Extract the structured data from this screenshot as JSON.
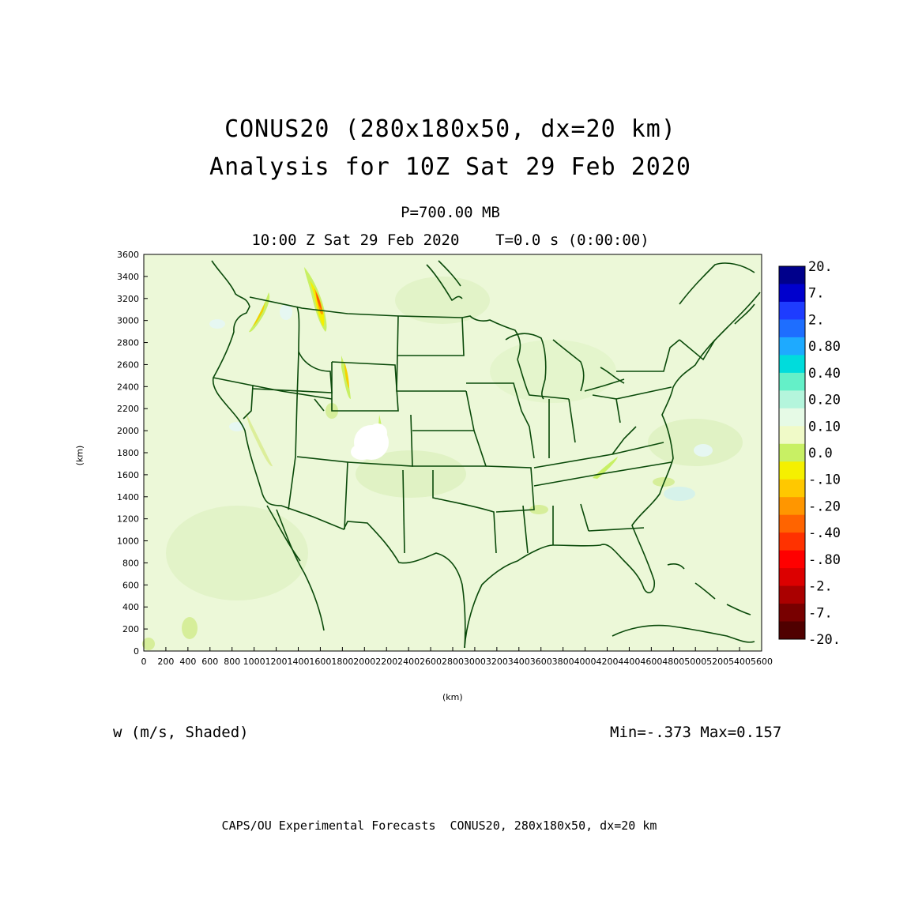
{
  "title": {
    "line1": "CONUS20 (280x180x50, dx=20 km)",
    "line2": "Analysis for 10Z Sat 29 Feb 2020"
  },
  "level_label": "P=700.00 MB",
  "time_label": "10:00 Z Sat 29 Feb 2020    T=0.0 s (0:00:00)",
  "variable_label": "w (m/s, Shaded)",
  "minmax_label": "Min=-.373 Max=0.157",
  "footer": "CAPS/OU Experimental Forecasts  CONUS20, 280x180x50, dx=20 km",
  "axes": {
    "xlabel": "(km)",
    "ylabel": "(km)",
    "x_range": [
      0,
      5600
    ],
    "y_range": [
      0,
      3600
    ],
    "x_ticks": [
      "0",
      "200",
      "400",
      "600",
      "800",
      "1000",
      "1200",
      "1400",
      "1600",
      "1800",
      "2000",
      "2200",
      "2400",
      "2600",
      "2800",
      "3000",
      "3200",
      "3400",
      "3600",
      "3800",
      "4000",
      "4200",
      "4400",
      "4600",
      "4800",
      "5000",
      "5200",
      "5400",
      "5600"
    ],
    "y_ticks": [
      "0",
      "200",
      "400",
      "600",
      "800",
      "1000",
      "1200",
      "1400",
      "1600",
      "1800",
      "2000",
      "2200",
      "2400",
      "2600",
      "2800",
      "3000",
      "3200",
      "3400",
      "3600"
    ]
  },
  "colorbar": {
    "labels": [
      "20.",
      "7.",
      "2.",
      "0.80",
      "0.40",
      "0.20",
      "0.10",
      "0.0",
      "-.10",
      "-.20",
      "-.40",
      "-.80",
      "-2.",
      "-7.",
      "-20."
    ],
    "colors": [
      "#00008b",
      "#0000cd",
      "#1e3cff",
      "#1e6eff",
      "#1eaaff",
      "#00dcdc",
      "#64f0c8",
      "#b4f5dc",
      "#e6fae6",
      "#f0fac8",
      "#c8f064",
      "#f5f000",
      "#ffc800",
      "#ff9600",
      "#ff6400",
      "#ff3200",
      "#ff0000",
      "#dc0000",
      "#aa0000",
      "#780000",
      "#500000"
    ]
  },
  "map": {
    "background_color": "#ecf8d8",
    "outline_color": "#0a4a0a"
  }
}
